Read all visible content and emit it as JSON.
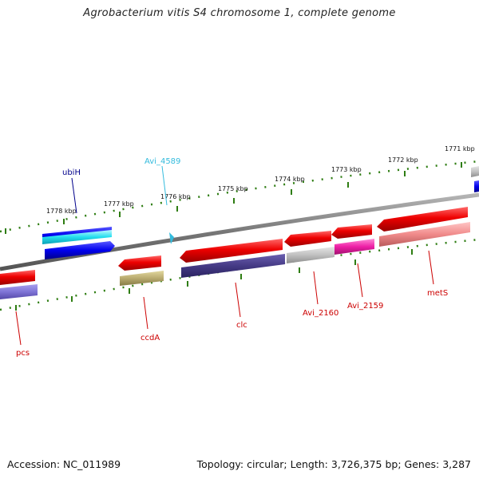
{
  "title": "Agrobacterium vitis S4 chromosome 1, complete genome",
  "footer": {
    "accession": "Accession: NC_011989",
    "summary": "Topology: circular; Length: 3,726,375 bp; Genes: 3,287"
  },
  "colors": {
    "backbone": "#7a7a7a",
    "tick": "#2e7d12",
    "label_red": "#cc0000",
    "label_blue": "#00008b",
    "label_cyan": "#33bbdd"
  },
  "kbp_ticks": [
    "1778 kbp",
    "1777 kbp",
    "1776 kbp",
    "1775 kbp",
    "1774 kbp",
    "1773 kbp",
    "1772 kbp",
    "1771 kbp"
  ],
  "gene_labels": {
    "ubiH": "ubiH",
    "avi_4589": "Avi_4589",
    "pcs": "pcs",
    "ccdA": "ccdA",
    "clc": "clc",
    "avi_2160": "Avi_2160",
    "avi_2159": "Avi_2159",
    "metS": "metS"
  }
}
